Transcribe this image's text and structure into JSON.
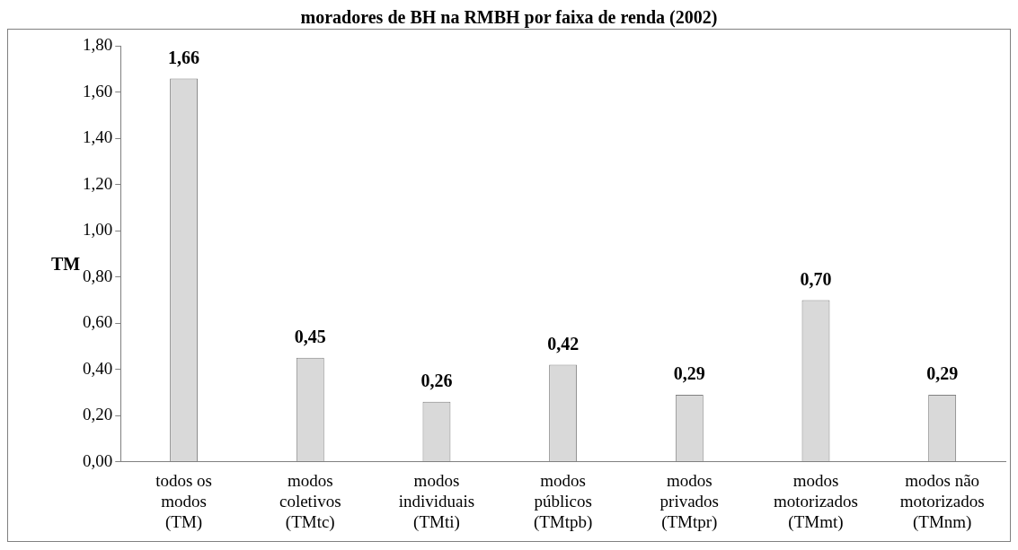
{
  "chart_data": {
    "type": "bar",
    "title": "moradores de BH na RMBH por faixa de renda (2002)",
    "ylabel": "TM",
    "categories": [
      "todos os\nmodos\n(TM)",
      "modos\ncoletivos\n(TMtc)",
      "modos\nindividuais\n(TMti)",
      "modos\npúblicos\n(TMtpb)",
      "modos\nprivados\n(TMtpr)",
      "modos\nmotorizados\n(TMmt)",
      "modos não\nmotorizados\n(TMnm)"
    ],
    "values": [
      1.66,
      0.45,
      0.26,
      0.42,
      0.29,
      0.7,
      0.29
    ],
    "value_labels": [
      "1,66",
      "0,45",
      "0,26",
      "0,42",
      "0,29",
      "0,70",
      "0,29"
    ],
    "color": "#d9d9d9",
    "ylim": [
      0,
      1.8
    ],
    "yticks": [
      {
        "value": 0,
        "label": "0,00"
      },
      {
        "value": 0.2,
        "label": "0,20"
      },
      {
        "value": 0.4,
        "label": "0,40"
      },
      {
        "value": 0.6,
        "label": "0,60"
      },
      {
        "value": 0.8,
        "label": "0,80"
      },
      {
        "value": 1.0,
        "label": "1,00"
      },
      {
        "value": 1.2,
        "label": "1,20"
      },
      {
        "value": 1.4,
        "label": "1,40"
      },
      {
        "value": 1.6,
        "label": "1,60"
      },
      {
        "value": 1.8,
        "label": "1,80"
      }
    ],
    "grid": false,
    "legend": false
  }
}
